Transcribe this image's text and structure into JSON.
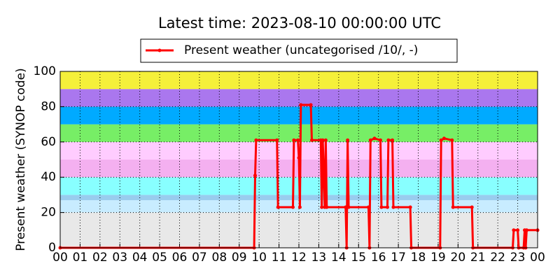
{
  "chart_data": {
    "type": "line",
    "title": "Latest time: 2023-08-10 00:00:00 UTC",
    "y_label": "Present weather (SYNOP code)",
    "x": [
      0,
      9.75,
      9.8,
      9.85,
      10.9,
      10.95,
      11.7,
      11.75,
      11.95,
      12.0,
      12.05,
      12.1,
      12.6,
      12.65,
      13.1,
      13.15,
      13.2,
      13.3,
      13.35,
      13.4,
      14.35,
      14.4,
      14.45,
      14.5,
      15.5,
      15.55,
      15.6,
      15.8,
      16.1,
      16.15,
      16.45,
      16.5,
      16.7,
      16.75,
      17.6,
      17.65,
      19.1,
      19.15,
      19.3,
      19.7,
      19.75,
      20.7,
      20.75,
      22.75,
      22.8,
      23.0,
      23.05,
      23.3,
      23.35,
      23.4,
      23.45,
      24
    ],
    "series": [
      {
        "name": "Present weather (uncategorised /10/, -)",
        "color": "#ff0000",
        "values": [
          0,
          0,
          41,
          61,
          61,
          23,
          23,
          61,
          61,
          51,
          23,
          81,
          81,
          61,
          61,
          23,
          61,
          23,
          61,
          23,
          23,
          0,
          61,
          23,
          23,
          0,
          61,
          62,
          61,
          23,
          23,
          61,
          61,
          23,
          23,
          0,
          0,
          61,
          62,
          61,
          23,
          23,
          0,
          0,
          10,
          10,
          0,
          0,
          10,
          0,
          10,
          10
        ]
      }
    ],
    "xlim": [
      0,
      24
    ],
    "xticks": [
      {
        "value": 0,
        "label": "00"
      },
      {
        "value": 1,
        "label": "01"
      },
      {
        "value": 2,
        "label": "02"
      },
      {
        "value": 3,
        "label": "03"
      },
      {
        "value": 4,
        "label": "04"
      },
      {
        "value": 5,
        "label": "05"
      },
      {
        "value": 6,
        "label": "06"
      },
      {
        "value": 7,
        "label": "07"
      },
      {
        "value": 8,
        "label": "08"
      },
      {
        "value": 9,
        "label": "09"
      },
      10,
      11,
      12,
      13,
      14,
      15,
      16,
      17,
      18,
      19,
      20,
      21,
      22,
      23,
      {
        "value": 24,
        "label": "00"
      }
    ],
    "ylim": [
      0,
      100
    ],
    "yticks": [
      0,
      20,
      40,
      60,
      80,
      100
    ],
    "grid": true,
    "bands": [
      {
        "from": 0,
        "to": 20,
        "color": "#e8e8e8"
      },
      {
        "from": 20,
        "to": 27,
        "color": "#c8ecff"
      },
      {
        "from": 27,
        "to": 30,
        "color": "#99ccee"
      },
      {
        "from": 30,
        "to": 40,
        "color": "#88ffff"
      },
      {
        "from": 40,
        "to": 50,
        "color": "#f4b0f0"
      },
      {
        "from": 50,
        "to": 60,
        "color": "#ffccff"
      },
      {
        "from": 60,
        "to": 70,
        "color": "#77ee66"
      },
      {
        "from": 70,
        "to": 80,
        "color": "#00aaff"
      },
      {
        "from": 80,
        "to": 90,
        "color": "#aa77ee"
      },
      {
        "from": 90,
        "to": 100,
        "color": "#f5f03a"
      }
    ]
  }
}
